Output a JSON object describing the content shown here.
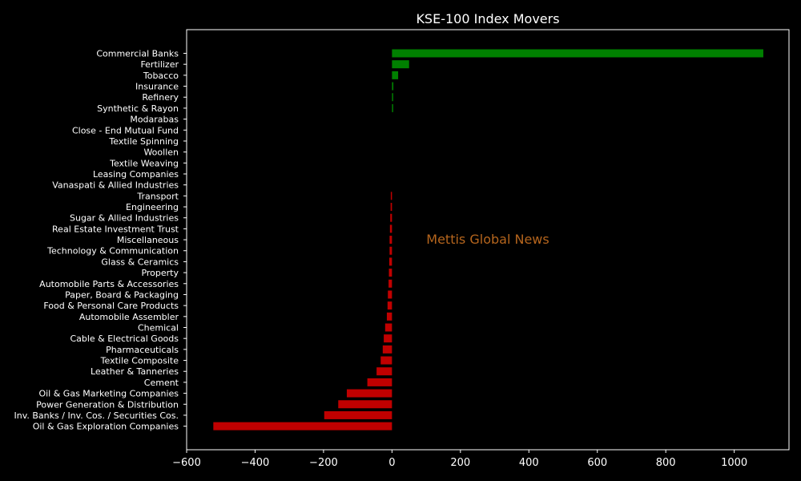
{
  "chart_data": {
    "type": "bar",
    "orientation": "horizontal",
    "title": "KSE-100 Index Movers",
    "xlabel": "",
    "ylabel": "",
    "xlim": [
      -600,
      1160
    ],
    "x_ticks": [
      -600,
      -400,
      -200,
      0,
      200,
      400,
      600,
      800,
      1000
    ],
    "x_tick_labels": [
      "−600",
      "−400",
      "−200",
      "0",
      "200",
      "400",
      "600",
      "800",
      "1000"
    ],
    "grid": false,
    "categories": [
      "Commercial Banks",
      "Fertilizer",
      "Tobacco",
      "Insurance",
      "Refinery",
      "Synthetic & Rayon",
      "Modarabas",
      "Close - End Mutual Fund",
      "Textile Spinning",
      "Woollen",
      "Textile Weaving",
      "Leasing Companies",
      "Vanaspati & Allied Industries",
      "Transport",
      "Engineering",
      "Sugar & Allied Industries",
      "Real Estate Investment Trust",
      "Miscellaneous",
      "Technology & Communication",
      "Glass & Ceramics",
      "Property",
      "Automobile Parts & Accessories",
      "Paper, Board & Packaging",
      "Food & Personal Care Products",
      "Automobile Assembler",
      "Chemical",
      "Cable & Electrical Goods",
      "Pharmaceuticals",
      "Textile Composite",
      "Leather & Tanneries",
      "Cement",
      "Oil & Gas Marketing Companies",
      "Power Generation & Distribution",
      "Inv. Banks / Inv. Cos. / Securities Cos.",
      "Oil & Gas Exploration Companies"
    ],
    "values": [
      1085,
      50,
      18,
      4,
      3,
      2,
      0,
      0,
      0,
      0,
      0,
      0,
      0,
      -3,
      -4,
      -5,
      -6,
      -7,
      -7,
      -8,
      -9,
      -10,
      -12,
      -13,
      -15,
      -20,
      -24,
      -27,
      -33,
      -45,
      -72,
      -132,
      -157,
      -198,
      -522
    ],
    "colors": {
      "positive": "#008000",
      "negative": "#c00000"
    },
    "watermark": {
      "text": "Mettis Global News",
      "color": "#b5651d"
    }
  }
}
